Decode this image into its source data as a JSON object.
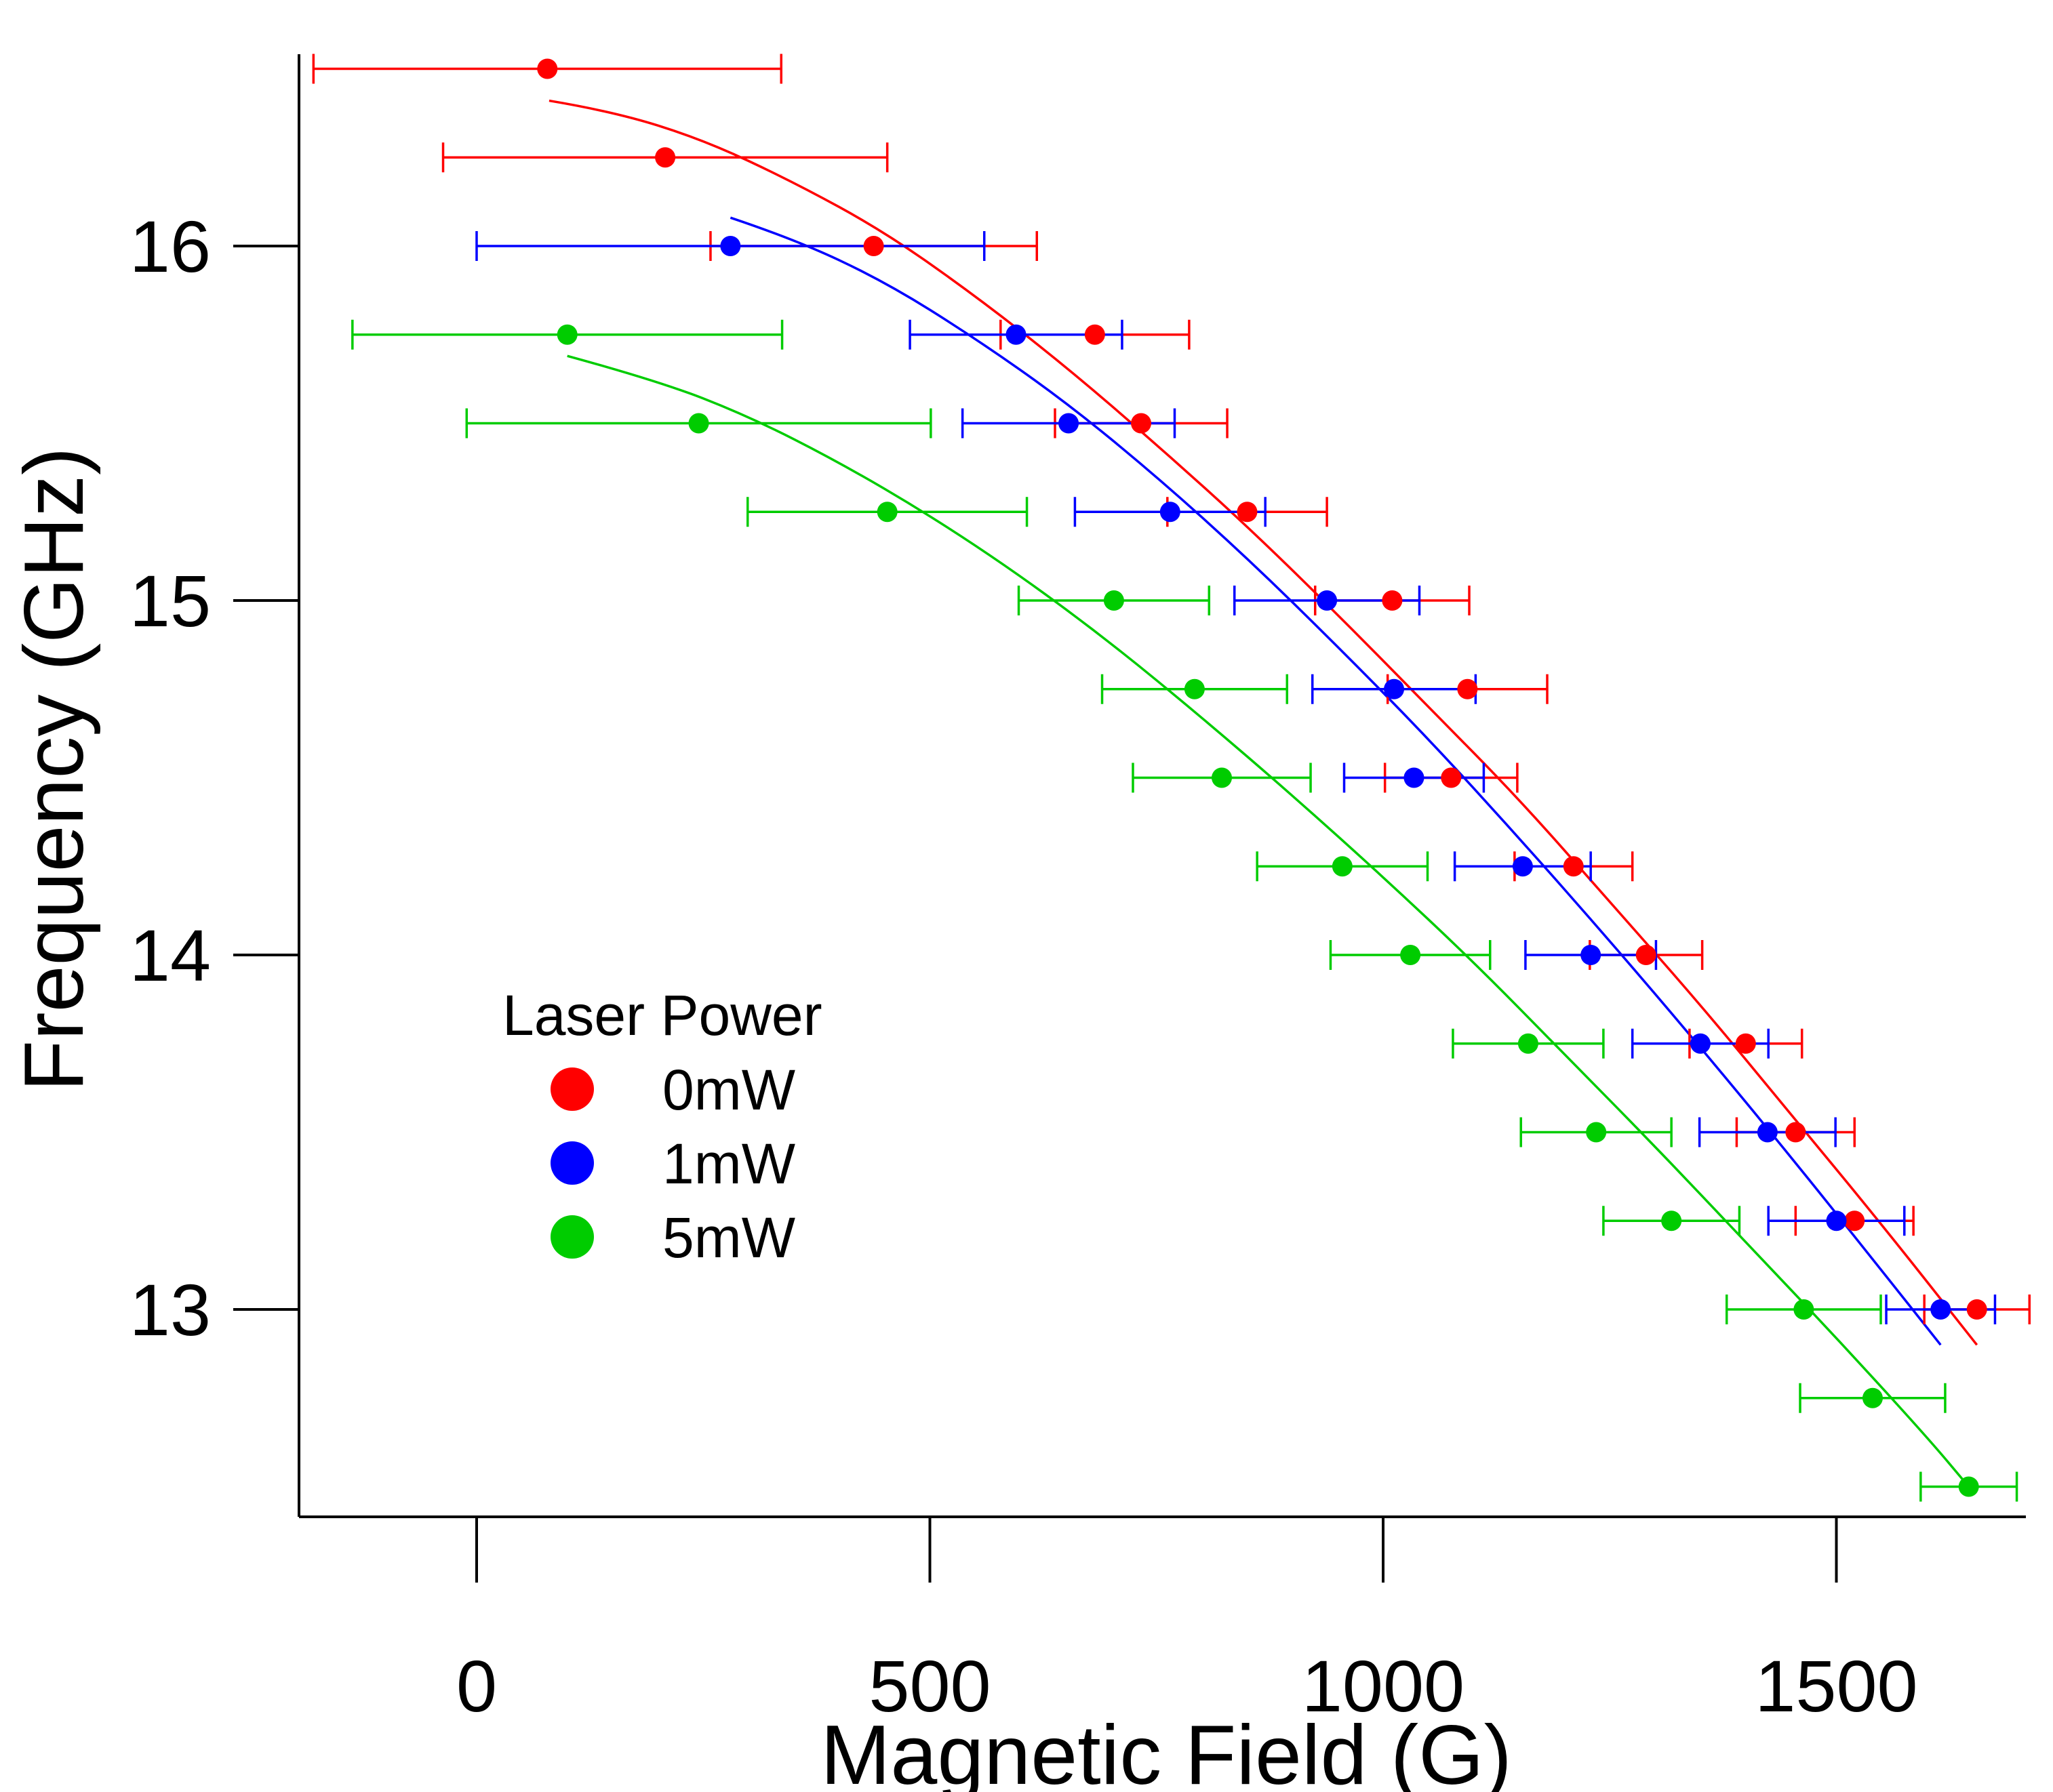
{
  "chart_data": {
    "type": "scatter",
    "title": "",
    "xlabel": "Magnetic Field (G)",
    "ylabel": "Frequency (GHz)",
    "xlim": [
      -200,
      1720
    ],
    "ylim": [
      12.45,
      16.52
    ],
    "x_ticks": [
      0,
      500,
      1000,
      1500
    ],
    "y_ticks": [
      13,
      14,
      15,
      16
    ],
    "grid": false,
    "legend": {
      "title": "Laser Power",
      "position": "bottom-left"
    },
    "series": [
      {
        "name": "0mW",
        "color": "#ff0000",
        "points": [
          {
            "x": 78,
            "y": 16.5,
            "xerr_low": 258,
            "xerr_high": 258
          },
          {
            "x": 208,
            "y": 16.25,
            "xerr_low": 245,
            "xerr_high": 245
          },
          {
            "x": 438,
            "y": 16.0,
            "xerr_low": 180,
            "xerr_high": 180
          },
          {
            "x": 682,
            "y": 15.75,
            "xerr_low": 104,
            "xerr_high": 104
          },
          {
            "x": 733,
            "y": 15.5,
            "xerr_low": 95,
            "xerr_high": 95
          },
          {
            "x": 850,
            "y": 15.25,
            "xerr_low": 88,
            "xerr_high": 88
          },
          {
            "x": 1010,
            "y": 15.0,
            "xerr_low": 85,
            "xerr_high": 85
          },
          {
            "x": 1093,
            "y": 14.75,
            "xerr_low": 88,
            "xerr_high": 88
          },
          {
            "x": 1075,
            "y": 14.5,
            "xerr_low": 73,
            "xerr_high": 73
          },
          {
            "x": 1210,
            "y": 14.25,
            "xerr_low": 65,
            "xerr_high": 65
          },
          {
            "x": 1290,
            "y": 14.0,
            "xerr_low": 62,
            "xerr_high": 62
          },
          {
            "x": 1400,
            "y": 13.75,
            "xerr_low": 62,
            "xerr_high": 62
          },
          {
            "x": 1455,
            "y": 13.5,
            "xerr_low": 65,
            "xerr_high": 65
          },
          {
            "x": 1520,
            "y": 13.25,
            "xerr_low": 65,
            "xerr_high": 65
          },
          {
            "x": 1655,
            "y": 13.0,
            "xerr_low": 58,
            "xerr_high": 58
          }
        ],
        "fit": {
          "x": [
            80,
            150,
            250,
            350,
            450,
            550,
            650,
            750,
            850,
            950,
            1050,
            1150,
            1250,
            1350,
            1450,
            1550,
            1655
          ],
          "y": [
            16.41,
            16.38,
            16.3,
            16.18,
            16.04,
            15.86,
            15.66,
            15.44,
            15.21,
            14.96,
            14.7,
            14.44,
            14.15,
            13.86,
            13.55,
            13.24,
            12.9
          ]
        }
      },
      {
        "name": "1mW",
        "color": "#0000ff",
        "points": [
          {
            "x": 280,
            "y": 16.0,
            "xerr_low": 280,
            "xerr_high": 280
          },
          {
            "x": 595,
            "y": 15.75,
            "xerr_low": 117,
            "xerr_high": 117
          },
          {
            "x": 653,
            "y": 15.5,
            "xerr_low": 117,
            "xerr_high": 117
          },
          {
            "x": 765,
            "y": 15.25,
            "xerr_low": 105,
            "xerr_high": 105
          },
          {
            "x": 938,
            "y": 15.0,
            "xerr_low": 102,
            "xerr_high": 102
          },
          {
            "x": 1012,
            "y": 14.75,
            "xerr_low": 90,
            "xerr_high": 90
          },
          {
            "x": 1034,
            "y": 14.5,
            "xerr_low": 77,
            "xerr_high": 77
          },
          {
            "x": 1154,
            "y": 14.25,
            "xerr_low": 75,
            "xerr_high": 75
          },
          {
            "x": 1229,
            "y": 14.0,
            "xerr_low": 72,
            "xerr_high": 72
          },
          {
            "x": 1350,
            "y": 13.75,
            "xerr_low": 75,
            "xerr_high": 75
          },
          {
            "x": 1424,
            "y": 13.5,
            "xerr_low": 75,
            "xerr_high": 75
          },
          {
            "x": 1500,
            "y": 13.25,
            "xerr_low": 75,
            "xerr_high": 75
          },
          {
            "x": 1615,
            "y": 13.0,
            "xerr_low": 60,
            "xerr_high": 60
          }
        ],
        "fit": {
          "x": [
            280,
            350,
            450,
            550,
            650,
            750,
            850,
            950,
            1050,
            1150,
            1250,
            1350,
            1450,
            1550,
            1615
          ],
          "y": [
            16.08,
            16.02,
            15.9,
            15.74,
            15.56,
            15.35,
            15.12,
            14.87,
            14.61,
            14.33,
            14.04,
            13.74,
            13.43,
            13.11,
            12.9
          ]
        }
      },
      {
        "name": "5mW",
        "color": "#00cc00",
        "points": [
          {
            "x": 100,
            "y": 15.75,
            "xerr_low": 237,
            "xerr_high": 237
          },
          {
            "x": 245,
            "y": 15.5,
            "xerr_low": 256,
            "xerr_high": 256
          },
          {
            "x": 453,
            "y": 15.25,
            "xerr_low": 154,
            "xerr_high": 154
          },
          {
            "x": 703,
            "y": 15.0,
            "xerr_low": 105,
            "xerr_high": 105
          },
          {
            "x": 792,
            "y": 14.75,
            "xerr_low": 102,
            "xerr_high": 102
          },
          {
            "x": 822,
            "y": 14.5,
            "xerr_low": 98,
            "xerr_high": 98
          },
          {
            "x": 955,
            "y": 14.25,
            "xerr_low": 94,
            "xerr_high": 94
          },
          {
            "x": 1030,
            "y": 14.0,
            "xerr_low": 88,
            "xerr_high": 88
          },
          {
            "x": 1160,
            "y": 13.75,
            "xerr_low": 83,
            "xerr_high": 83
          },
          {
            "x": 1235,
            "y": 13.5,
            "xerr_low": 83,
            "xerr_high": 83
          },
          {
            "x": 1318,
            "y": 13.25,
            "xerr_low": 75,
            "xerr_high": 75
          },
          {
            "x": 1464,
            "y": 13.0,
            "xerr_low": 85,
            "xerr_high": 85
          },
          {
            "x": 1540,
            "y": 12.75,
            "xerr_low": 80,
            "xerr_high": 80
          },
          {
            "x": 1646,
            "y": 12.5,
            "xerr_low": 53,
            "xerr_high": 53
          }
        ],
        "fit": {
          "x": [
            100,
            200,
            300,
            400,
            500,
            600,
            700,
            800,
            900,
            1000,
            1100,
            1200,
            1300,
            1400,
            1500,
            1600,
            1646
          ],
          "y": [
            15.69,
            15.62,
            15.52,
            15.39,
            15.24,
            15.07,
            14.88,
            14.67,
            14.45,
            14.22,
            13.98,
            13.72,
            13.46,
            13.19,
            12.92,
            12.64,
            12.5
          ]
        }
      }
    ]
  }
}
